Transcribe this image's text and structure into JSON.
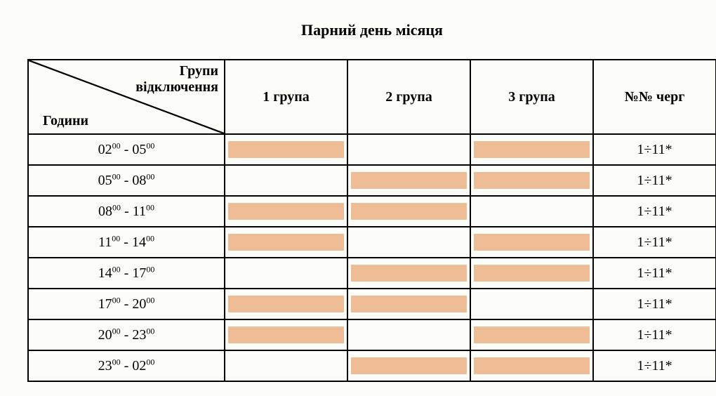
{
  "title": "Парний день місяця",
  "header": {
    "diag_top": "Групи\nвідключення",
    "diag_bottom": "Години",
    "groups": [
      "1 група",
      "2 група",
      "3 група"
    ],
    "queue": "№№ черг"
  },
  "colors": {
    "shaded": "#eebd96",
    "background": "#fcfcf9",
    "border": "#000000"
  },
  "rows": [
    {
      "from_h": "02",
      "from_m": "00",
      "to_h": "05",
      "to_m": "00",
      "g": [
        true,
        false,
        true
      ],
      "queue": "1÷11*"
    },
    {
      "from_h": "05",
      "from_m": "00",
      "to_h": "08",
      "to_m": "00",
      "g": [
        false,
        true,
        true
      ],
      "queue": "1÷11*"
    },
    {
      "from_h": "08",
      "from_m": "00",
      "to_h": "11",
      "to_m": "00",
      "g": [
        true,
        true,
        false
      ],
      "queue": "1÷11*"
    },
    {
      "from_h": "11",
      "from_m": "00",
      "to_h": "14",
      "to_m": "00",
      "g": [
        true,
        false,
        true
      ],
      "queue": "1÷11*"
    },
    {
      "from_h": "14",
      "from_m": "00",
      "to_h": "17",
      "to_m": "00",
      "g": [
        false,
        true,
        true
      ],
      "queue": "1÷11*"
    },
    {
      "from_h": "17",
      "from_m": "00",
      "to_h": "20",
      "to_m": "00",
      "g": [
        true,
        true,
        false
      ],
      "queue": "1÷11*"
    },
    {
      "from_h": "20",
      "from_m": "00",
      "to_h": "23",
      "to_m": "00",
      "g": [
        true,
        false,
        true
      ],
      "queue": "1÷11*"
    },
    {
      "from_h": "23",
      "from_m": "00",
      "to_h": "02",
      "to_m": "00",
      "g": [
        false,
        true,
        true
      ],
      "queue": "1÷11*"
    }
  ]
}
